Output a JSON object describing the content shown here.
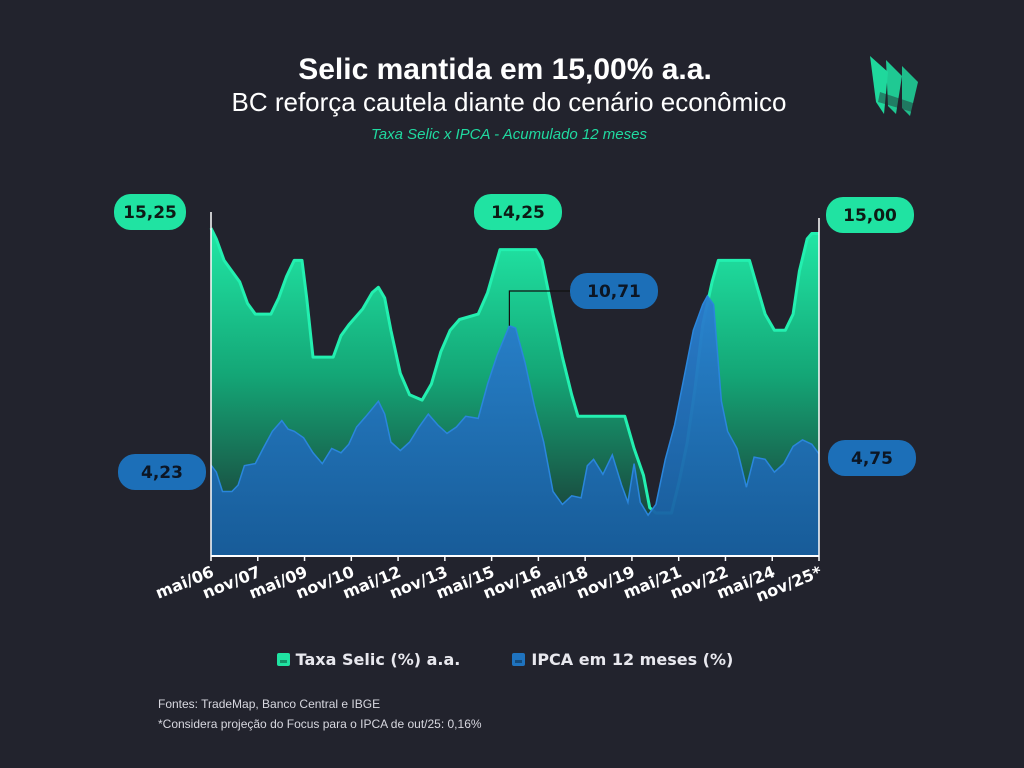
{
  "header": {
    "title": "Selic mantida em 15,00% a.a.",
    "subtitle": "BC reforça cautela diante do cenário econômico",
    "caption": "Taxa Selic x IPCA - Acumulado 12 meses"
  },
  "logo": {
    "icon": "sail-logo-icon",
    "color": "#1fd89c"
  },
  "colors": {
    "background": "#22232d",
    "selic": "#20e3a2",
    "selic_line": "#23f0b0",
    "ipca": "#1f73bf",
    "ipca_label_bg": "#1c6fb8",
    "axis": "#ffffff"
  },
  "chart_data": {
    "type": "area",
    "x_tick_labels": [
      "mai/06",
      "nov/07",
      "mai/09",
      "nov/10",
      "mai/12",
      "nov/13",
      "mai/15",
      "nov/16",
      "mai/18",
      "nov/19",
      "mai/21",
      "nov/22",
      "mai/24",
      "nov/25*"
    ],
    "x_range": [
      2006.33,
      2025.83
    ],
    "y_range": [
      0,
      16
    ],
    "series": [
      {
        "name": "Taxa Selic (%) a.a.",
        "points": [
          [
            2006.33,
            15.25
          ],
          [
            2006.5,
            14.75
          ],
          [
            2006.75,
            13.75
          ],
          [
            2007.0,
            13.25
          ],
          [
            2007.25,
            12.75
          ],
          [
            2007.5,
            11.75
          ],
          [
            2007.75,
            11.25
          ],
          [
            2008.25,
            11.25
          ],
          [
            2008.5,
            12.0
          ],
          [
            2008.75,
            13.0
          ],
          [
            2009.0,
            13.75
          ],
          [
            2009.25,
            13.75
          ],
          [
            2009.4,
            12.0
          ],
          [
            2009.6,
            9.25
          ],
          [
            2010.25,
            9.25
          ],
          [
            2010.5,
            10.25
          ],
          [
            2010.75,
            10.75
          ],
          [
            2011.2,
            11.5
          ],
          [
            2011.5,
            12.25
          ],
          [
            2011.7,
            12.5
          ],
          [
            2011.9,
            12.0
          ],
          [
            2012.1,
            10.5
          ],
          [
            2012.4,
            8.5
          ],
          [
            2012.7,
            7.5
          ],
          [
            2013.1,
            7.25
          ],
          [
            2013.4,
            8.0
          ],
          [
            2013.7,
            9.5
          ],
          [
            2014.0,
            10.5
          ],
          [
            2014.3,
            11.0
          ],
          [
            2014.9,
            11.25
          ],
          [
            2015.2,
            12.25
          ],
          [
            2015.4,
            13.25
          ],
          [
            2015.6,
            14.25
          ],
          [
            2016.75,
            14.25
          ],
          [
            2016.95,
            13.75
          ],
          [
            2017.3,
            11.25
          ],
          [
            2017.6,
            9.25
          ],
          [
            2017.9,
            7.5
          ],
          [
            2018.1,
            6.5
          ],
          [
            2019.6,
            6.5
          ],
          [
            2019.9,
            5.0
          ],
          [
            2020.2,
            3.75
          ],
          [
            2020.4,
            2.25
          ],
          [
            2020.6,
            2.0
          ],
          [
            2021.1,
            2.0
          ],
          [
            2021.35,
            3.5
          ],
          [
            2021.6,
            5.25
          ],
          [
            2021.85,
            7.75
          ],
          [
            2022.1,
            10.75
          ],
          [
            2022.4,
            12.75
          ],
          [
            2022.6,
            13.75
          ],
          [
            2023.6,
            13.75
          ],
          [
            2023.8,
            12.75
          ],
          [
            2024.1,
            11.25
          ],
          [
            2024.4,
            10.5
          ],
          [
            2024.75,
            10.5
          ],
          [
            2025.0,
            11.25
          ],
          [
            2025.2,
            13.25
          ],
          [
            2025.45,
            14.75
          ],
          [
            2025.6,
            15.0
          ],
          [
            2025.83,
            15.0
          ]
        ]
      },
      {
        "name": "IPCA em 12 meses (%)",
        "points": [
          [
            2006.33,
            4.23
          ],
          [
            2006.5,
            3.9
          ],
          [
            2006.7,
            3.0
          ],
          [
            2007.0,
            3.0
          ],
          [
            2007.2,
            3.3
          ],
          [
            2007.4,
            4.2
          ],
          [
            2007.75,
            4.3
          ],
          [
            2008.0,
            5.0
          ],
          [
            2008.3,
            5.8
          ],
          [
            2008.6,
            6.3
          ],
          [
            2008.8,
            5.9
          ],
          [
            2009.0,
            5.8
          ],
          [
            2009.3,
            5.5
          ],
          [
            2009.6,
            4.8
          ],
          [
            2009.9,
            4.3
          ],
          [
            2010.2,
            5.0
          ],
          [
            2010.5,
            4.8
          ],
          [
            2010.75,
            5.2
          ],
          [
            2011.0,
            6.0
          ],
          [
            2011.3,
            6.5
          ],
          [
            2011.7,
            7.2
          ],
          [
            2011.9,
            6.6
          ],
          [
            2012.1,
            5.3
          ],
          [
            2012.4,
            4.9
          ],
          [
            2012.7,
            5.3
          ],
          [
            2013.0,
            6.0
          ],
          [
            2013.3,
            6.6
          ],
          [
            2013.6,
            6.1
          ],
          [
            2013.9,
            5.7
          ],
          [
            2014.2,
            6.0
          ],
          [
            2014.5,
            6.5
          ],
          [
            2014.9,
            6.4
          ],
          [
            2015.2,
            8.0
          ],
          [
            2015.5,
            9.3
          ],
          [
            2015.9,
            10.71
          ],
          [
            2016.1,
            10.6
          ],
          [
            2016.4,
            9.0
          ],
          [
            2016.7,
            7.0
          ],
          [
            2017.0,
            5.3
          ],
          [
            2017.3,
            3.0
          ],
          [
            2017.6,
            2.4
          ],
          [
            2017.9,
            2.8
          ],
          [
            2018.2,
            2.7
          ],
          [
            2018.4,
            4.2
          ],
          [
            2018.6,
            4.5
          ],
          [
            2018.9,
            3.8
          ],
          [
            2019.2,
            4.7
          ],
          [
            2019.5,
            3.3
          ],
          [
            2019.7,
            2.5
          ],
          [
            2019.9,
            4.3
          ],
          [
            2020.1,
            2.5
          ],
          [
            2020.35,
            1.9
          ],
          [
            2020.6,
            2.4
          ],
          [
            2020.9,
            4.5
          ],
          [
            2021.2,
            6.1
          ],
          [
            2021.5,
            8.3
          ],
          [
            2021.8,
            10.5
          ],
          [
            2022.1,
            11.7
          ],
          [
            2022.25,
            12.1
          ],
          [
            2022.45,
            11.7
          ],
          [
            2022.7,
            7.2
          ],
          [
            2022.9,
            5.8
          ],
          [
            2023.2,
            5.0
          ],
          [
            2023.5,
            3.2
          ],
          [
            2023.75,
            4.6
          ],
          [
            2024.1,
            4.5
          ],
          [
            2024.4,
            3.9
          ],
          [
            2024.7,
            4.3
          ],
          [
            2025.0,
            5.1
          ],
          [
            2025.3,
            5.4
          ],
          [
            2025.6,
            5.2
          ],
          [
            2025.83,
            4.75
          ]
        ]
      }
    ],
    "callouts": [
      {
        "series": "selic",
        "value": "15,25",
        "at": "start"
      },
      {
        "series": "selic",
        "value": "14,25",
        "at": "peak-2015"
      },
      {
        "series": "selic",
        "value": "15,00",
        "at": "end"
      },
      {
        "series": "ipca",
        "value": "4,23",
        "at": "start"
      },
      {
        "series": "ipca",
        "value": "10,71",
        "at": "peak-2016"
      },
      {
        "series": "ipca",
        "value": "4,75",
        "at": "end"
      }
    ],
    "legend": [
      {
        "label": "Taxa Selic (%) a.a.",
        "color": "#20e3a2"
      },
      {
        "label": "IPCA em 12 meses (%)",
        "color": "#1f73bf"
      }
    ],
    "legend_position": "bottom-center"
  },
  "footer": {
    "sources": "Fontes: TradeMap, Banco Central e IBGE",
    "note": "*Considera projeção do Focus para o IPCA de out/25: 0,16%"
  }
}
